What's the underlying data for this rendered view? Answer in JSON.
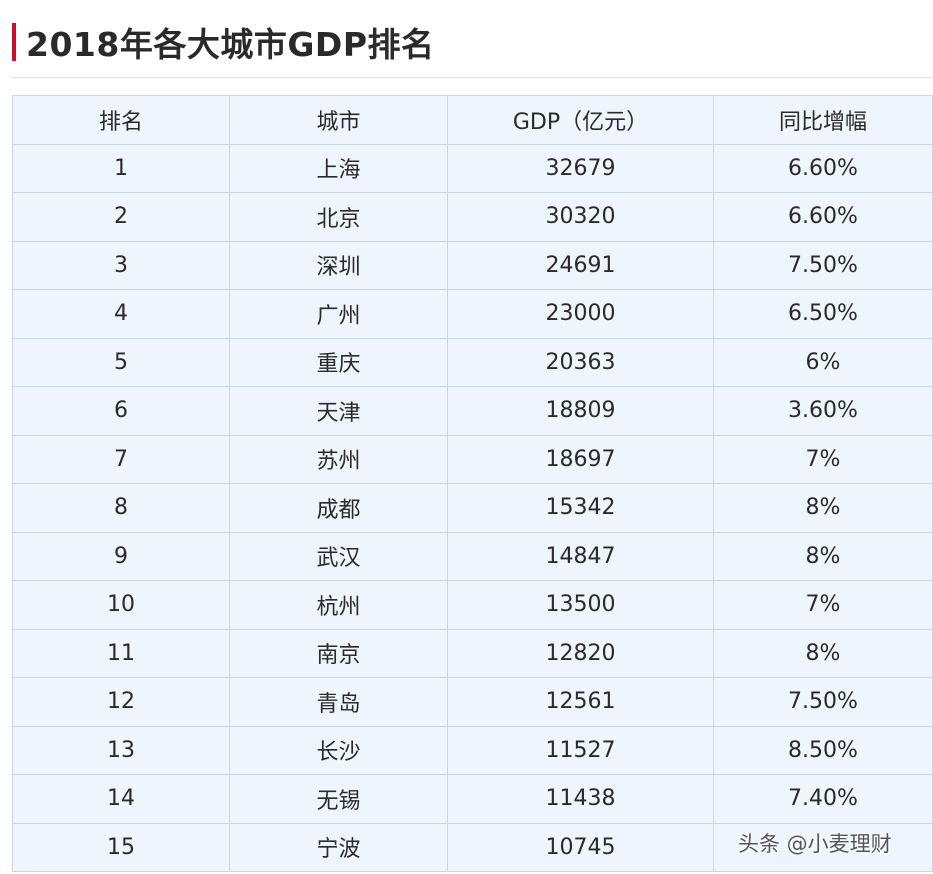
{
  "page": {
    "title": "2018年各大城市GDP排名",
    "accent_color": "#c8102e"
  },
  "table": {
    "headers": [
      "排名",
      "城市",
      "GDP（亿元）",
      "同比增幅"
    ],
    "rows": [
      {
        "rank": "1",
        "city": "上海",
        "gdp": "32679",
        "growth": "6.60%"
      },
      {
        "rank": "2",
        "city": "北京",
        "gdp": "30320",
        "growth": "6.60%"
      },
      {
        "rank": "3",
        "city": "深圳",
        "gdp": "24691",
        "growth": "7.50%"
      },
      {
        "rank": "4",
        "city": "广州",
        "gdp": "23000",
        "growth": "6.50%"
      },
      {
        "rank": "5",
        "city": "重庆",
        "gdp": "20363",
        "growth": "6%"
      },
      {
        "rank": "6",
        "city": "天津",
        "gdp": "18809",
        "growth": "3.60%"
      },
      {
        "rank": "7",
        "city": "苏州",
        "gdp": "18697",
        "growth": "7%"
      },
      {
        "rank": "8",
        "city": "成都",
        "gdp": "15342",
        "growth": "8%"
      },
      {
        "rank": "9",
        "city": "武汉",
        "gdp": "14847",
        "growth": "8%"
      },
      {
        "rank": "10",
        "city": "杭州",
        "gdp": "13500",
        "growth": "7%"
      },
      {
        "rank": "11",
        "city": "南京",
        "gdp": "12820",
        "growth": "8%"
      },
      {
        "rank": "12",
        "city": "青岛",
        "gdp": "12561",
        "growth": "7.50%"
      },
      {
        "rank": "13",
        "city": "长沙",
        "gdp": "11527",
        "growth": "8.50%"
      },
      {
        "rank": "14",
        "city": "无锡",
        "gdp": "11438",
        "growth": "7.40%"
      },
      {
        "rank": "15",
        "city": "宁波",
        "gdp": "10745",
        "growth": ""
      }
    ]
  },
  "watermark": {
    "text": "头条 @小麦理财"
  }
}
